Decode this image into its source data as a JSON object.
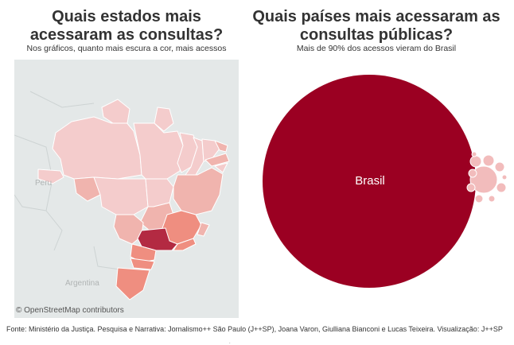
{
  "left_panel": {
    "title": "Quais estados mais acessaram as consultas?",
    "subtitle": "Nos gráficos, quanto mais escura a cor, mais acessos"
  },
  "right_panel": {
    "title": "Quais países mais acessaram as consultas públicas?",
    "subtitle": "Mais de 90% dos acessos vieram do Brasil"
  },
  "map": {
    "labels": {
      "peru": "Peru",
      "argentina": "Argentina"
    },
    "attribution": "© OpenStreetMap contributors",
    "colors": {
      "background": "#e4e8e8",
      "light": "#f4cccc",
      "light_mid": "#f0b4ae",
      "mid": "#ef8e80",
      "dark": "#b32a42",
      "border": "#ffffff"
    }
  },
  "chart_data": {
    "type": "bubble",
    "encoding": "size and color intensity = number of accesses",
    "series": [
      {
        "name": "Brasil",
        "share_pct": 90
      }
    ],
    "colors": {
      "primary": "#9b0022",
      "others": "#f2bcbc"
    }
  },
  "footer": {
    "text": "Fonte: Ministério da Justiça. Pesquisa e Narrativa: Jornalismo++ São Paulo (J++SP), Joana Varon, Giulliana Bianconi e Lucas Teixeira. Visualização: J++SP",
    "dot": "."
  }
}
